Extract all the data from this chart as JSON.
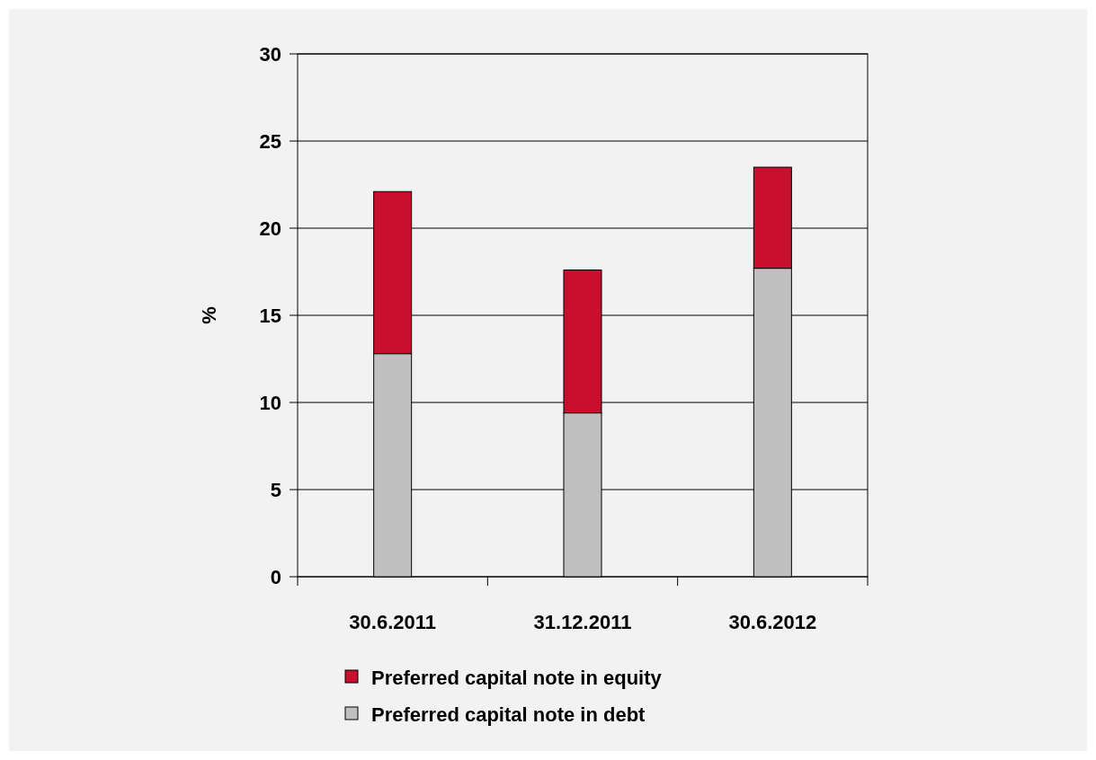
{
  "chart_data": {
    "type": "bar",
    "stacked": true,
    "ylabel": "%",
    "categories": [
      "30.6.2011",
      "31.12.2011",
      "30.6.2012"
    ],
    "series": [
      {
        "name": "Preferred capital note in debt",
        "color": "#c0c0c0",
        "values": [
          12.8,
          9.4,
          17.7
        ]
      },
      {
        "name": "Preferred capital note in equity",
        "color": "#c8102e",
        "values": [
          9.3,
          8.2,
          5.8
        ]
      }
    ],
    "ylim": [
      0,
      30
    ],
    "yticks": [
      0,
      5,
      10,
      15,
      20,
      25,
      30
    ],
    "grid": "y",
    "legend": "bottom"
  }
}
